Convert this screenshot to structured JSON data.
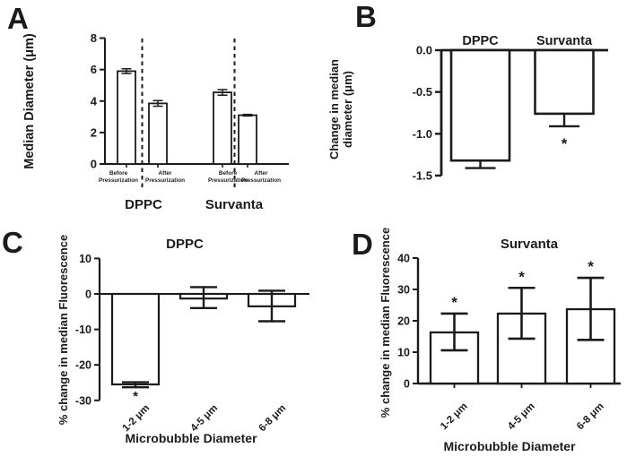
{
  "figure": {
    "background_color": "#ffffff",
    "ink_color": "#1b1b1b",
    "bar_fill": "#ffffff"
  },
  "panels": {
    "a": {
      "label": "A"
    },
    "b": {
      "label": "B"
    },
    "c": {
      "label": "C"
    },
    "d": {
      "label": "D"
    }
  },
  "chart_data": [
    {
      "panel": "A",
      "type": "bar",
      "title": "",
      "ylabel": "Median Diameter (μm)",
      "ylim": [
        0,
        8
      ],
      "yticks": [
        8,
        6,
        4,
        2,
        0
      ],
      "ytick_labels": [
        "8",
        "6",
        "4",
        "2",
        "0"
      ],
      "categories": [
        "Before Pressurization",
        "After Pressurization",
        "Before Pressurization",
        "After Pressurization"
      ],
      "category_lines": [
        [
          "Before",
          "Pressurization"
        ],
        [
          "After",
          "Pressurization"
        ],
        [
          "Before",
          "Pressurization"
        ],
        [
          "After",
          "Pressurization"
        ]
      ],
      "group_labels": [
        "DPPC",
        "Survanta"
      ],
      "values": [
        5.9,
        3.85,
        4.55,
        3.1
      ],
      "errors": [
        0.15,
        0.18,
        0.18,
        0.05
      ],
      "separator_style": "dashed-vertical-between-before-after",
      "grid": "off"
    },
    {
      "panel": "B",
      "type": "bar",
      "title": "",
      "ylabel": "Change in median diameter (μm)",
      "ylabel_lines": [
        "Change in median",
        "diameter (μm)"
      ],
      "ylim": [
        -1.5,
        0
      ],
      "yticks": [
        0,
        -0.5,
        -1.0,
        -1.5
      ],
      "ytick_labels": [
        "0.0",
        "-0.5",
        "-1.0",
        "-1.5"
      ],
      "categories": [
        "DPPC",
        "Survanta"
      ],
      "values": [
        -1.32,
        -0.76
      ],
      "error_whisker_low": [
        -1.41,
        -0.91
      ],
      "annotations": [
        "",
        "*"
      ],
      "annotation_position": "below",
      "grid": "off"
    },
    {
      "panel": "C",
      "type": "bar",
      "title": "DPPC",
      "ylabel": "% change in median Fluorescence",
      "xlabel": "Microbubble Diameter",
      "ylim": [
        -30,
        10
      ],
      "yticks": [
        10,
        0,
        -10,
        -20,
        -30
      ],
      "ytick_labels": [
        "10",
        "0",
        "-10",
        "-20",
        "-30"
      ],
      "categories": [
        "1-2 μm",
        "4-5 μm",
        "6-8 μm"
      ],
      "values": [
        -25.5,
        -1.3,
        -3.5
      ],
      "error_whisker_high": [
        -24.9,
        1.9,
        0.9
      ],
      "error_whisker_low": [
        -26.3,
        -4.0,
        -7.7
      ],
      "annotations": [
        "*",
        "",
        ""
      ],
      "annotation_position": "below",
      "grid": "off"
    },
    {
      "panel": "D",
      "type": "bar",
      "title": "Survanta",
      "ylabel": "% change in median Fluorescence",
      "xlabel": "Microbubble Diameter",
      "ylim": [
        0,
        40
      ],
      "yticks": [
        40,
        30,
        20,
        10,
        0
      ],
      "ytick_labels": [
        "40",
        "30",
        "20",
        "10",
        "0"
      ],
      "categories": [
        "1-2 μm",
        "4-5 μm",
        "6-8 μm"
      ],
      "values": [
        16.3,
        22.3,
        23.7
      ],
      "error_whisker_high": [
        22.3,
        30.5,
        33.7
      ],
      "error_whisker_low": [
        10.6,
        14.3,
        13.9
      ],
      "annotations": [
        "*",
        "*",
        "*"
      ],
      "annotation_position": "above",
      "grid": "off"
    }
  ]
}
